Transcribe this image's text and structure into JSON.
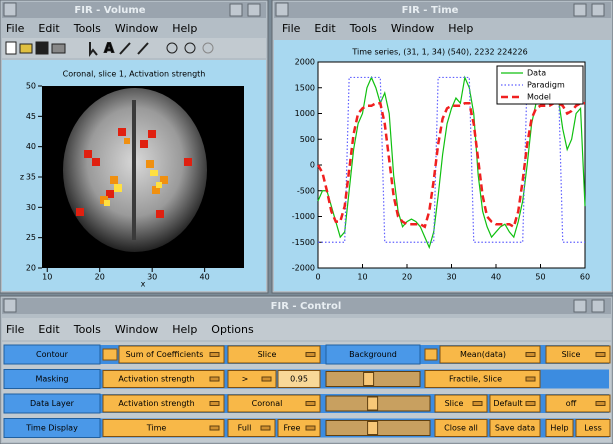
{
  "volume_window": {
    "title": "FIR - Volume",
    "menu": [
      "File",
      "Edit",
      "Tools",
      "Window",
      "Help"
    ],
    "plot": {
      "title": "Coronal, slice 1, Activation strength",
      "xlabel": "x",
      "ylabel": "z",
      "xlim": [
        9,
        47.5
      ],
      "ylim": [
        20,
        50
      ],
      "xticks": [
        10,
        20,
        30,
        40
      ],
      "yticks": [
        20,
        25,
        30,
        35,
        40,
        45,
        50
      ]
    }
  },
  "time_window": {
    "title": "FIR - Time",
    "menu": [
      "File",
      "Edit",
      "Tools",
      "Window",
      "Help"
    ],
    "chart": {
      "type": "line",
      "title": "Time series, (31, 1, 34) (540), 2232 224226",
      "x": [
        0,
        1,
        2,
        3,
        4,
        5,
        6,
        7,
        8,
        9,
        10,
        11,
        12,
        13,
        14,
        15,
        16,
        17,
        18,
        19,
        20,
        21,
        22,
        23,
        24,
        25,
        26,
        27,
        28,
        29,
        30,
        31,
        32,
        33,
        34,
        35,
        36,
        37,
        38,
        39,
        40,
        41,
        42,
        43,
        44,
        45,
        46,
        47,
        48,
        49,
        50,
        51,
        52,
        53,
        54,
        55,
        56,
        57,
        58,
        59,
        60
      ],
      "series": [
        {
          "name": "Data",
          "color": "#10c010",
          "style": "solid",
          "values": [
            -700,
            -500,
            -500,
            -800,
            -1100,
            -1400,
            -1300,
            -500,
            300,
            800,
            1000,
            1500,
            1700,
            1500,
            1200,
            1400,
            1000,
            -200,
            -900,
            -1200,
            -1100,
            -1050,
            -1100,
            -1200,
            -1400,
            -1600,
            -1300,
            -600,
            200,
            800,
            1100,
            1300,
            1200,
            1700,
            1500,
            1000,
            -200,
            -900,
            -1200,
            -1400,
            -1300,
            -1200,
            -1150,
            -1300,
            -1400,
            -1100,
            -700,
            0,
            800,
            1200,
            1300,
            1200,
            1400,
            1500,
            1300,
            700,
            300,
            500,
            1000,
            1100,
            -800
          ]
        },
        {
          "name": "Paradigm",
          "color": "#6060ff",
          "style": "dotted",
          "values": [
            -1500,
            -1500,
            -1500,
            -1500,
            -1500,
            -1500,
            -1500,
            1700,
            1700,
            1700,
            1700,
            1700,
            1700,
            1700,
            1700,
            -1500,
            -1500,
            -1500,
            -1500,
            -1500,
            -1500,
            -1500,
            -1500,
            -1500,
            -1500,
            -1500,
            -1500,
            1700,
            1700,
            1700,
            1700,
            1700,
            1700,
            1700,
            1700,
            -1500,
            -1500,
            -1500,
            -1500,
            -1500,
            -1500,
            -1500,
            -1500,
            -1500,
            -1500,
            -1500,
            -1500,
            1700,
            1700,
            1700,
            1700,
            1700,
            1700,
            1700,
            1700,
            -1500,
            -1500,
            -1500,
            -1500,
            -1500,
            -1500
          ]
        },
        {
          "name": "Model",
          "color": "#f02020",
          "style": "dashed",
          "values": [
            0,
            -150,
            -500,
            -900,
            -1100,
            -1100,
            -800,
            -100,
            600,
            1000,
            1100,
            1150,
            1150,
            1200,
            1200,
            800,
            100,
            -600,
            -1000,
            -1100,
            -1150,
            -1150,
            -1150,
            -1150,
            -1200,
            -900,
            -300,
            400,
            900,
            1100,
            1150,
            1150,
            1150,
            1200,
            1200,
            800,
            100,
            -600,
            -1000,
            -1100,
            -1150,
            -1150,
            -1150,
            -1150,
            -1200,
            -900,
            -300,
            400,
            900,
            1100,
            1150,
            1150,
            1150,
            1200,
            1200,
            1150,
            1000,
            1050,
            1150,
            1200,
            1200
          ]
        }
      ],
      "xlim": [
        0,
        60
      ],
      "ylim": [
        -2000,
        2000
      ],
      "xticks": [
        0,
        10,
        20,
        30,
        40,
        50,
        60
      ],
      "yticks": [
        -2000,
        -1500,
        -1000,
        -500,
        0,
        500,
        1000,
        1500,
        2000
      ],
      "legend": "upper right"
    }
  },
  "control_window": {
    "title": "FIR - Control",
    "menu": [
      "File",
      "Edit",
      "Tools",
      "Window",
      "Help",
      "Options"
    ],
    "rows": [
      {
        "label": "Contour",
        "widgets": [
          {
            "type": "check"
          },
          {
            "type": "menu",
            "text": "Sum of Coefficients"
          },
          {
            "type": "menu",
            "text": "Slice"
          },
          {
            "type": "label",
            "text": "Background"
          },
          {
            "type": "check"
          },
          {
            "type": "menu",
            "text": "Mean(data)"
          },
          {
            "type": "menu",
            "text": "Slice"
          }
        ]
      },
      {
        "label": "Masking",
        "widgets": [
          {
            "type": "menu",
            "text": "Activation strength"
          },
          {
            "type": "menu",
            "text": ">"
          },
          {
            "type": "field",
            "text": "0.95"
          },
          {
            "type": "slider"
          },
          {
            "type": "menu",
            "text": "Fractile, Slice"
          }
        ]
      },
      {
        "label": "Data Layer",
        "widgets": [
          {
            "type": "menu",
            "text": "Activation strength"
          },
          {
            "type": "menu",
            "text": "Coronal"
          },
          {
            "type": "slider"
          },
          {
            "type": "menu",
            "text": "Slice"
          },
          {
            "type": "menu",
            "text": "Default"
          },
          {
            "type": "menu",
            "text": "off"
          }
        ]
      },
      {
        "label": "Time Display",
        "widgets": [
          {
            "type": "menu",
            "text": "Time"
          },
          {
            "type": "menu",
            "text": "Full"
          },
          {
            "type": "menu",
            "text": "Free"
          },
          {
            "type": "slider"
          },
          {
            "type": "button",
            "text": "Close all"
          },
          {
            "type": "button",
            "text": "Save data"
          },
          {
            "type": "button",
            "text": "Help"
          },
          {
            "type": "button",
            "text": "Less"
          }
        ]
      }
    ]
  }
}
